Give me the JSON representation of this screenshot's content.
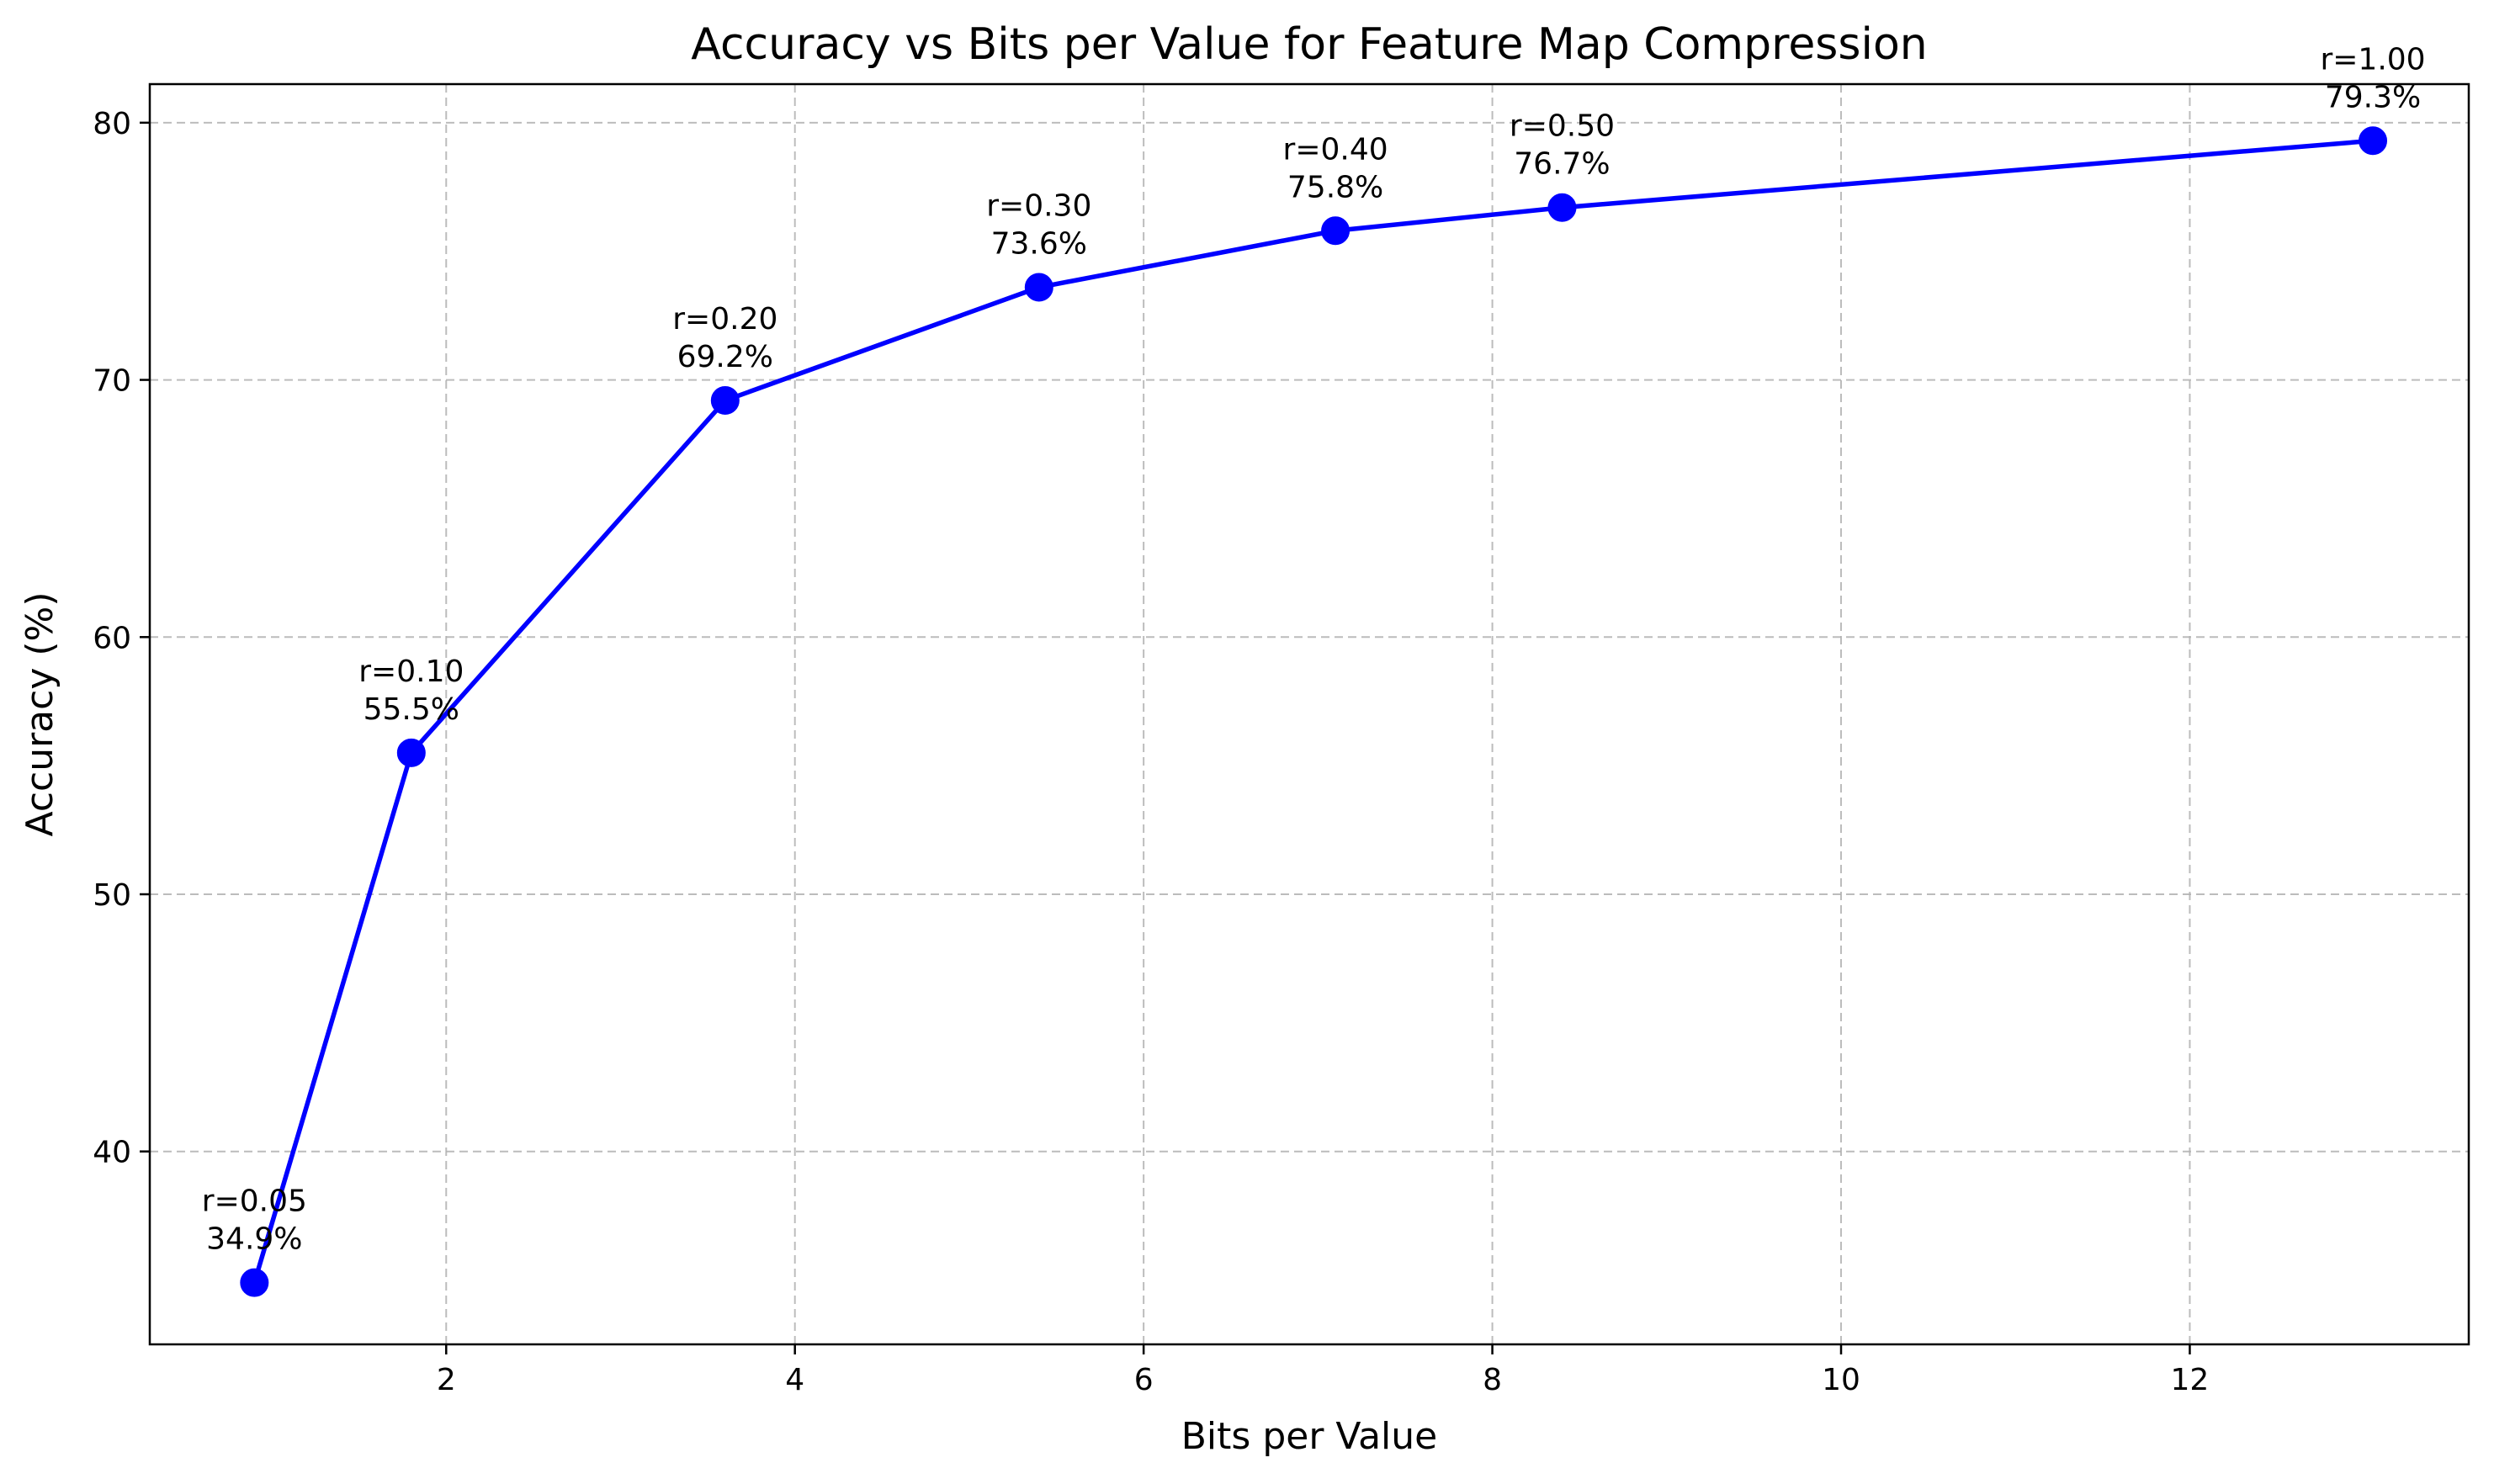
{
  "chart_data": {
    "type": "line",
    "title": "Accuracy vs Bits per Value for Feature Map Compression",
    "xlabel": "Bits per Value",
    "ylabel": "Accuracy (%)",
    "xlim": [
      0.3,
      13.6
    ],
    "ylim": [
      32.5,
      81.5
    ],
    "xticks": [
      2,
      4,
      6,
      8,
      10,
      12
    ],
    "yticks": [
      40,
      50,
      60,
      70,
      80
    ],
    "grid": true,
    "series": [
      {
        "color": "#0000ff",
        "marker": "circle",
        "points": [
          {
            "x": 0.9,
            "y": 34.9,
            "label_top": "r=0.05",
            "label_bottom": "34.9%"
          },
          {
            "x": 1.8,
            "y": 55.5,
            "label_top": "r=0.10",
            "label_bottom": "55.5%"
          },
          {
            "x": 3.6,
            "y": 69.2,
            "label_top": "r=0.20",
            "label_bottom": "69.2%"
          },
          {
            "x": 5.4,
            "y": 73.6,
            "label_top": "r=0.30",
            "label_bottom": "73.6%"
          },
          {
            "x": 7.1,
            "y": 75.8,
            "label_top": "r=0.40",
            "label_bottom": "75.8%"
          },
          {
            "x": 8.4,
            "y": 76.7,
            "label_top": "r=0.50",
            "label_bottom": "76.7%"
          },
          {
            "x": 13.05,
            "y": 79.3,
            "label_top": "r=1.00",
            "label_bottom": "79.3%"
          }
        ]
      }
    ]
  }
}
